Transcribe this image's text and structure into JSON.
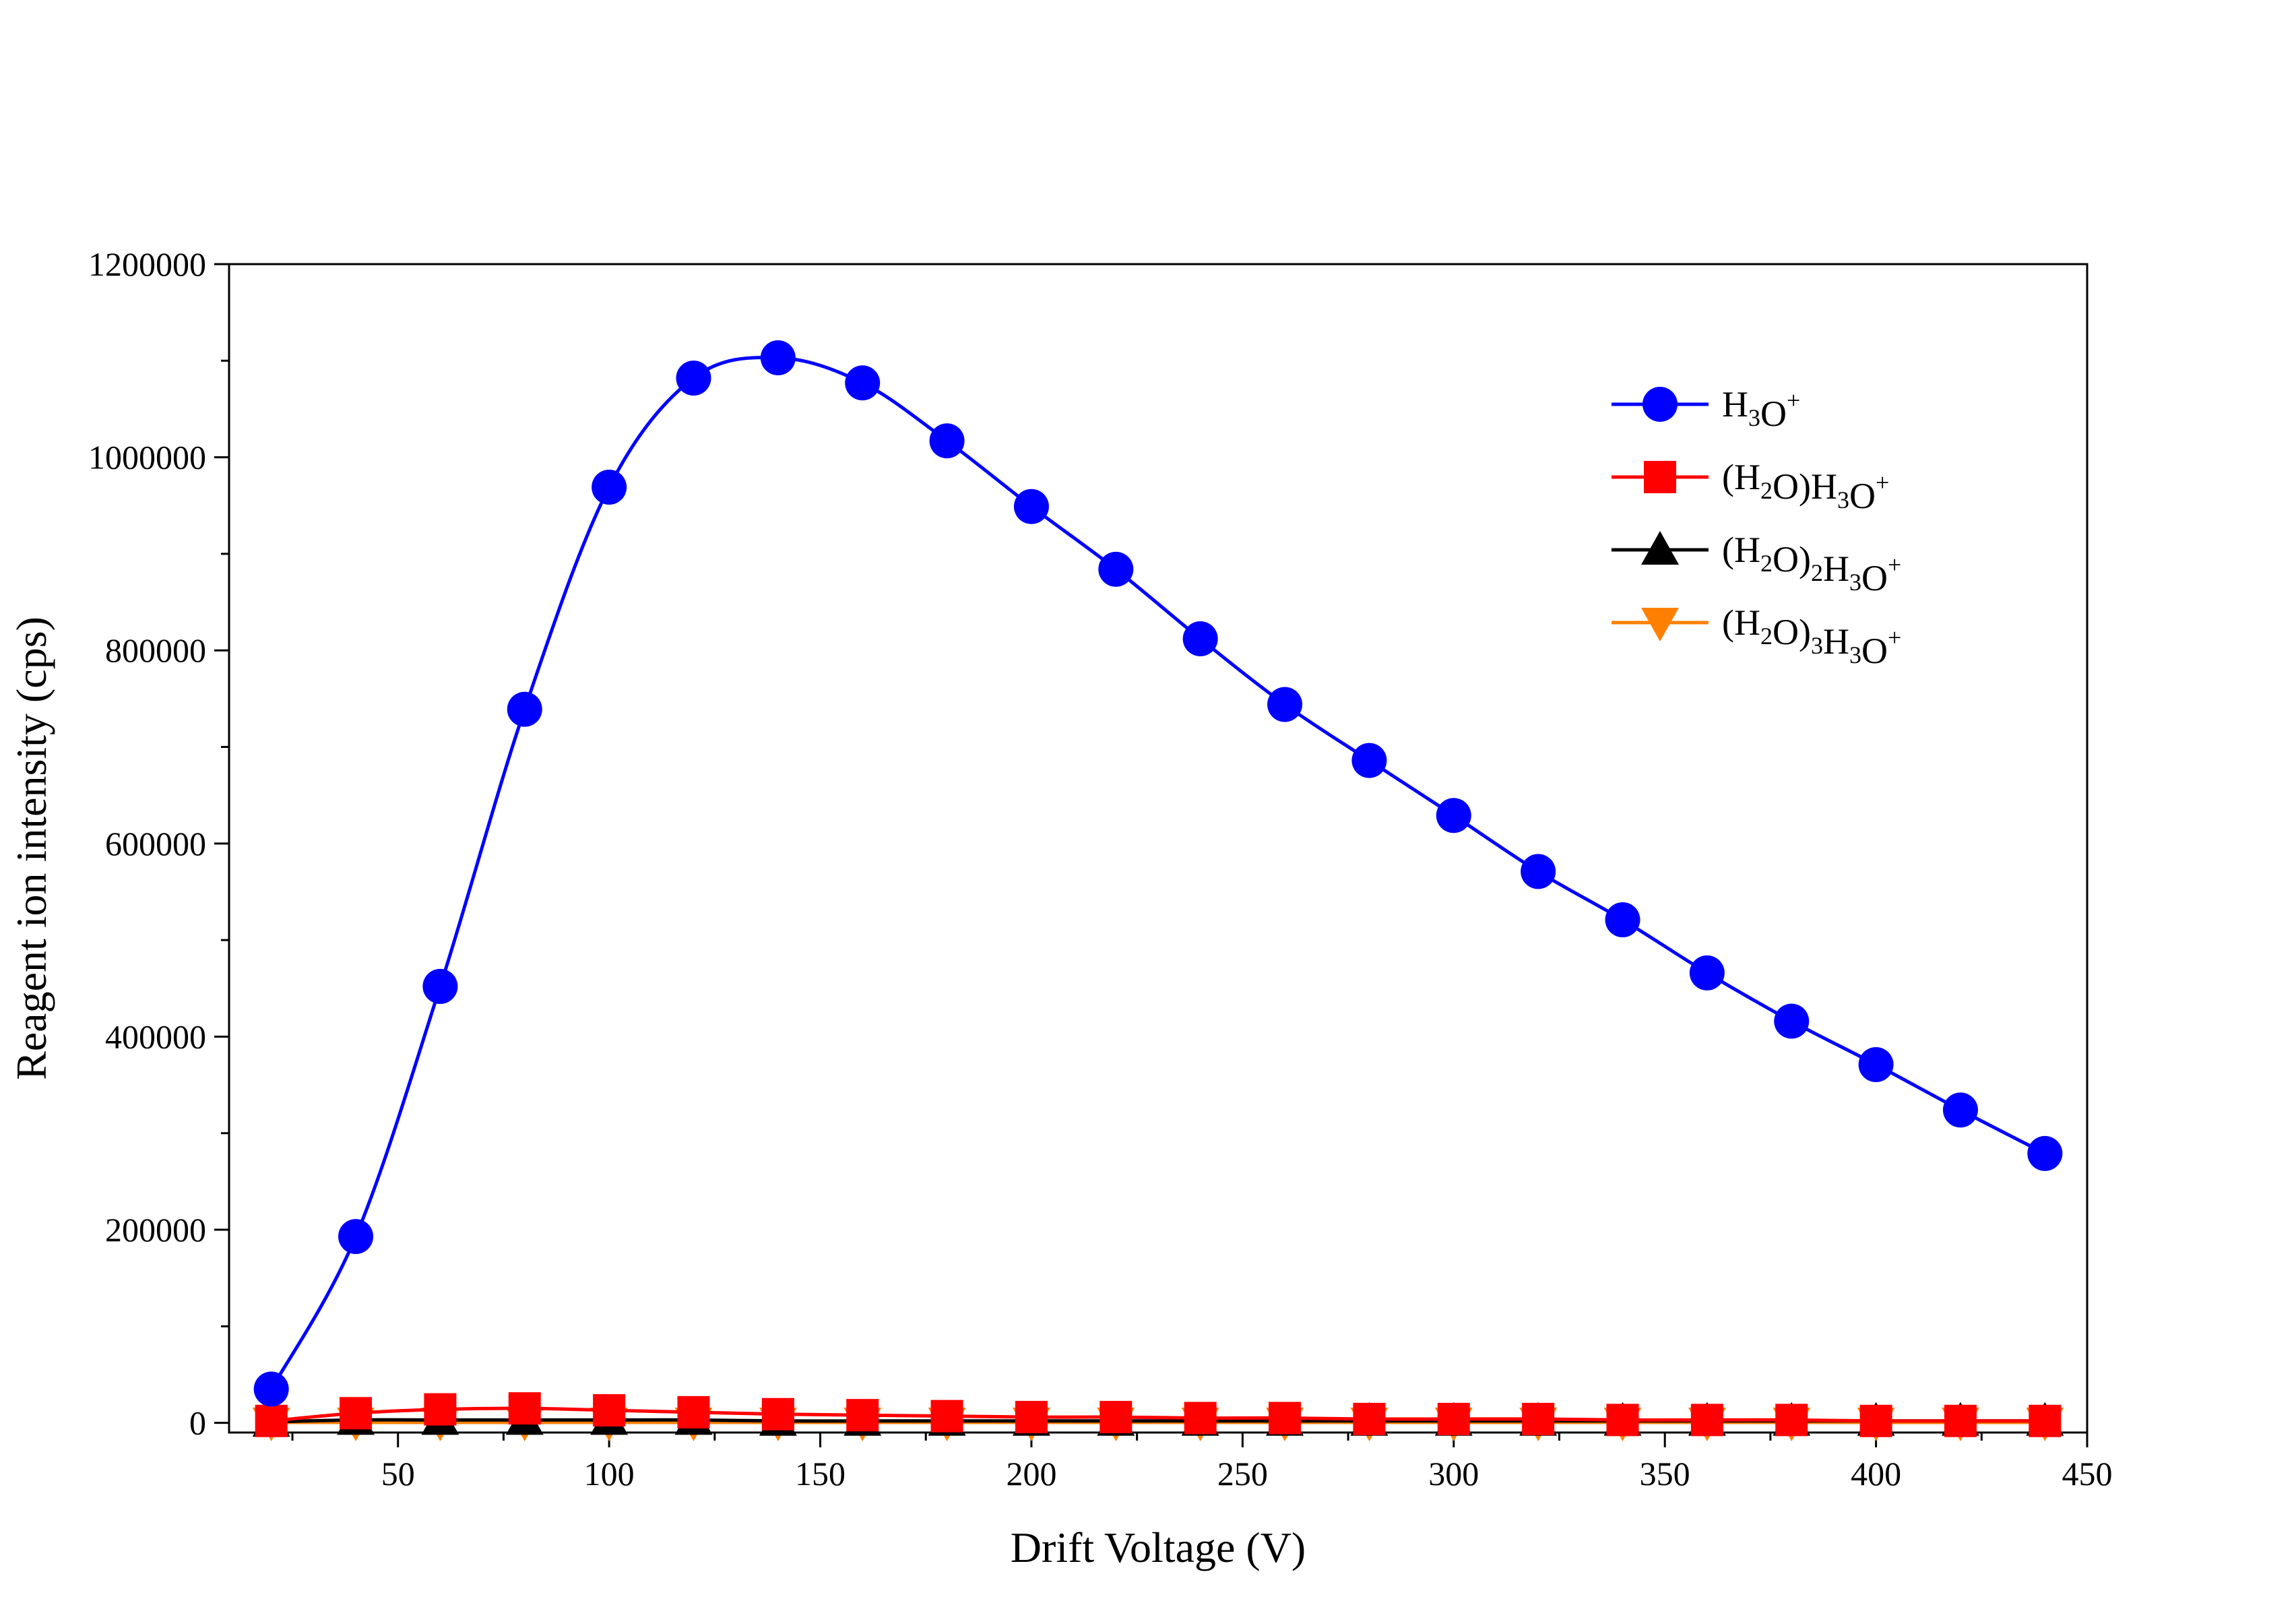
{
  "chart_data": {
    "type": "line",
    "title": "",
    "xlabel": "Drift Voltage (V)",
    "ylabel": "Reagent ion intensity (cps)",
    "xlim": [
      10,
      450
    ],
    "ylim": [
      -10000,
      1200000
    ],
    "xticks": [
      50,
      100,
      150,
      200,
      250,
      300,
      350,
      400,
      450
    ],
    "yticks": [
      0,
      200000,
      400000,
      600000,
      800000,
      1000000,
      1200000
    ],
    "grid": false,
    "legend_position": "top-right",
    "x": [
      20,
      40,
      60,
      80,
      100,
      120,
      140,
      160,
      180,
      200,
      220,
      240,
      260,
      280,
      300,
      320,
      340,
      360,
      380,
      400,
      420,
      440
    ],
    "series": [
      {
        "name": "H3O+",
        "legend": {
          "parts": [
            [
              "H",
              ""
            ],
            [
              "3",
              "sub"
            ],
            [
              "O",
              ""
            ],
            [
              "+",
              "sup"
            ]
          ]
        },
        "color": "#0000ff",
        "marker": "circle",
        "values": [
          35000,
          193000,
          452000,
          739000,
          969000,
          1082000,
          1103000,
          1077000,
          1017000,
          949000,
          884000,
          812000,
          744000,
          686000,
          629000,
          571000,
          521000,
          466000,
          416000,
          371000,
          324000,
          279000
        ]
      },
      {
        "name": "(H2O)H3O+",
        "legend": {
          "parts": [
            [
              "(H",
              ""
            ],
            [
              "2",
              "sub"
            ],
            [
              "O)H",
              ""
            ],
            [
              "3",
              "sub"
            ],
            [
              "O",
              ""
            ],
            [
              "+",
              "sup"
            ]
          ]
        },
        "color": "#ff0000",
        "marker": "square",
        "values": [
          2000,
          10000,
          14000,
          15000,
          13000,
          11000,
          9000,
          8000,
          7000,
          6000,
          6000,
          5000,
          5000,
          4000,
          4000,
          4000,
          3000,
          3000,
          3000,
          2000,
          2000,
          2000
        ]
      },
      {
        "name": "(H2O)2H3O+",
        "legend": {
          "parts": [
            [
              "(H",
              ""
            ],
            [
              "2",
              "sub"
            ],
            [
              "O)",
              ""
            ],
            [
              "2",
              "sub"
            ],
            [
              "H",
              ""
            ],
            [
              "3",
              "sub"
            ],
            [
              "O",
              ""
            ],
            [
              "+",
              "sup"
            ]
          ]
        },
        "color": "#000000",
        "marker": "triangle-up",
        "values": [
          1000,
          3000,
          3000,
          3000,
          3000,
          3000,
          2000,
          2000,
          2000,
          2000,
          2000,
          2000,
          2000,
          2000,
          2000,
          2000,
          2000,
          2000,
          2000,
          2000,
          2000,
          2000
        ]
      },
      {
        "name": "(H2O)3H3O+",
        "legend": {
          "parts": [
            [
              "(H",
              ""
            ],
            [
              "2",
              "sub"
            ],
            [
              "O)",
              ""
            ],
            [
              "3",
              "sub"
            ],
            [
              "H",
              ""
            ],
            [
              "3",
              "sub"
            ],
            [
              "O",
              ""
            ],
            [
              "+",
              "sup"
            ]
          ]
        },
        "color": "#ff8000",
        "marker": "triangle-down",
        "values": [
          500,
          500,
          500,
          500,
          500,
          500,
          500,
          500,
          500,
          500,
          500,
          500,
          500,
          500,
          500,
          500,
          500,
          500,
          500,
          500,
          500,
          500
        ]
      }
    ]
  }
}
